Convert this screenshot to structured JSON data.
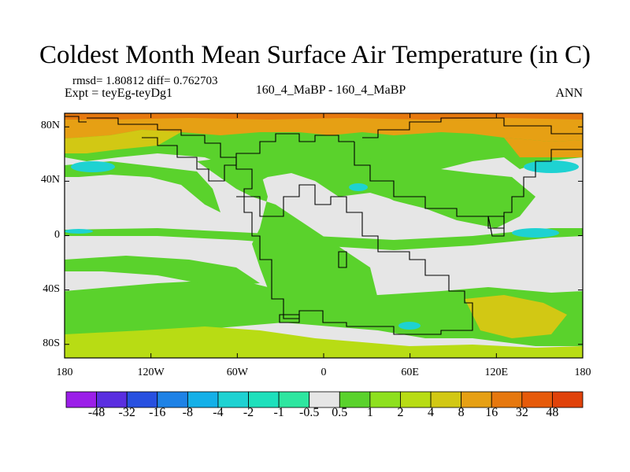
{
  "title": "Coldest Month Mean Surface Air Temperature (in C)",
  "stats": "rmsd= 1.80812 diff= 0.762703",
  "expt": "Expt = teyEg-teyDg1",
  "center_label": "160_4_MaBP - 160_4_MaBP",
  "season": "ANN",
  "chart_data": {
    "type": "heatmap",
    "title": "Coldest Month Mean Surface Air Temperature (in C)",
    "xlabel": "",
    "ylabel": "",
    "x_ticks": [
      "180",
      "120W",
      "60W",
      "0",
      "60E",
      "120E",
      "180"
    ],
    "y_ticks": [
      "80N",
      "40N",
      "0",
      "40S",
      "80S"
    ],
    "xlim": [
      -180,
      180
    ],
    "ylim": [
      -90,
      90
    ],
    "colorbar": {
      "labels": [
        "-48",
        "-32",
        "-16",
        "-8",
        "-4",
        "-2",
        "-1",
        "-0.5",
        "0.5",
        "1",
        "2",
        "4",
        "8",
        "16",
        "32",
        "48"
      ],
      "colors": [
        "#9b1ee8",
        "#5a2ee0",
        "#2850e0",
        "#1e82e6",
        "#14b0e8",
        "#1ed2d2",
        "#1ee0bc",
        "#2ee6a0",
        "#e6e6e6",
        "#5ad22c",
        "#8ee01e",
        "#b8dc14",
        "#d2c814",
        "#e6a014",
        "#e6780e",
        "#e65a0a",
        "#e0420a"
      ]
    }
  }
}
